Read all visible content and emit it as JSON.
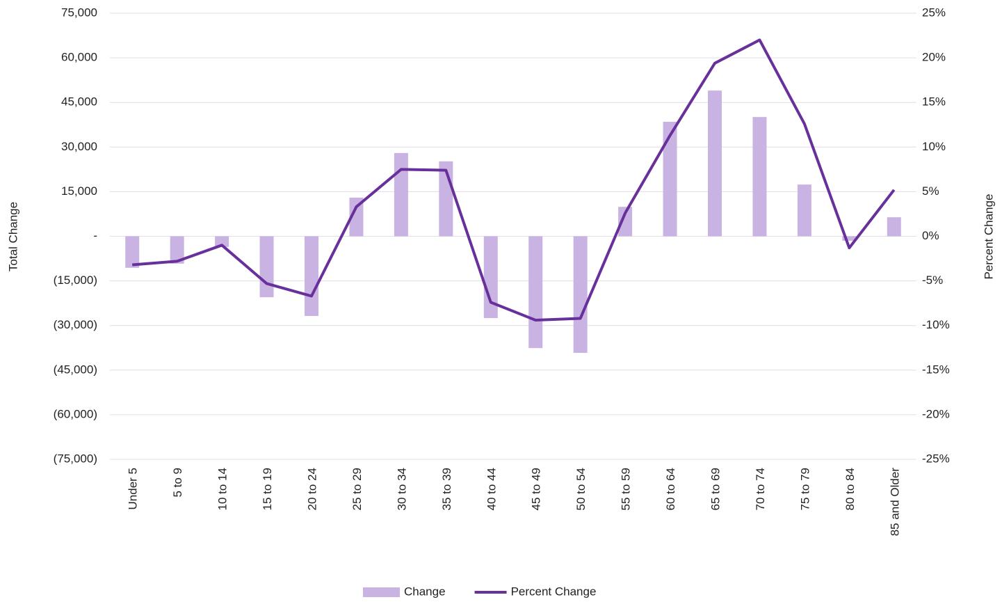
{
  "chart_data": {
    "type": "bar-line",
    "y_label": "Total Change",
    "y2_label": "Percent Change",
    "categories": [
      "Under 5",
      "5 to 9",
      "10 to 14",
      "15 to 19",
      "20 to 24",
      "25 to 29",
      "30 to 34",
      "35 to 39",
      "40 to 44",
      "45 to 49",
      "50 to 54",
      "55 to 59",
      "60 to 64",
      "65 to 69",
      "70 to 74",
      "75 to 79",
      "80 to 84",
      "85 and Older"
    ],
    "series": [
      {
        "name": "Change",
        "type": "bar",
        "axis": "y",
        "color": "#c9b3e3",
        "values": [
          -10600,
          -9200,
          -3600,
          -20500,
          -26800,
          13000,
          28000,
          25200,
          -27500,
          -37600,
          -39200,
          9900,
          38500,
          49000,
          40100,
          17400,
          -1500,
          6400
        ]
      },
      {
        "name": "Percent Change",
        "type": "line",
        "axis": "y2",
        "color": "#68309a",
        "values": [
          -3.2,
          -2.8,
          -1.0,
          -5.3,
          -6.7,
          3.3,
          7.5,
          7.4,
          -7.4,
          -9.4,
          -9.2,
          2.6,
          11.3,
          19.4,
          22.0,
          12.6,
          -1.3,
          5.2
        ]
      }
    ],
    "ylim": [
      -75000,
      75000
    ],
    "yticks": [
      {
        "value": -75000,
        "label": "(75,000)"
      },
      {
        "value": -60000,
        "label": "(60,000)"
      },
      {
        "value": -45000,
        "label": "(45,000)"
      },
      {
        "value": -30000,
        "label": "(30,000)"
      },
      {
        "value": -15000,
        "label": "(15,000)"
      },
      {
        "value": 0,
        "label": "-"
      },
      {
        "value": 15000,
        "label": "15,000"
      },
      {
        "value": 30000,
        "label": "30,000"
      },
      {
        "value": 45000,
        "label": "45,000"
      },
      {
        "value": 60000,
        "label": "60,000"
      },
      {
        "value": 75000,
        "label": "75,000"
      }
    ],
    "y2lim": [
      -25,
      25
    ],
    "y2ticks": [
      {
        "value": -25,
        "label": "-25%"
      },
      {
        "value": -20,
        "label": "-20%"
      },
      {
        "value": -15,
        "label": "-15%"
      },
      {
        "value": -10,
        "label": "-10%"
      },
      {
        "value": -5,
        "label": "-5%"
      },
      {
        "value": 0,
        "label": "0%"
      },
      {
        "value": 5,
        "label": "5%"
      },
      {
        "value": 10,
        "label": "10%"
      },
      {
        "value": 15,
        "label": "15%"
      },
      {
        "value": 20,
        "label": "20%"
      },
      {
        "value": 25,
        "label": "25%"
      }
    ],
    "grid": true,
    "legend": "bottom"
  }
}
